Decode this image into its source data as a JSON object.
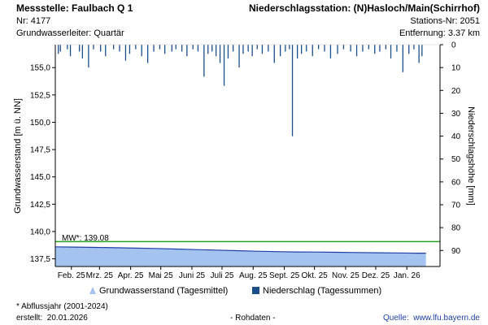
{
  "header": {
    "station_title": "Messstelle: Faulbach Q 1",
    "station_nr": "Nr: 4177",
    "aquifer": "Grundwasserleiter: Quartär",
    "rain_station_title": "Niederschlagsstation: (N)Hasloch/Main(Schirrhof)",
    "rain_station_nr": "Stations-Nr: 2051",
    "distance": "Entfernung: 3.37 km"
  },
  "footer": {
    "note": "* Abflussjahr (2001-2024)",
    "created_label": "erstellt:",
    "created_date": "20.01.2026",
    "raw_note": "- Rohdaten -",
    "source_label": "Quelle:",
    "source_link": "www.lfu.bayern.de"
  },
  "colors": {
    "groundwater_fill": "#a4c3ef",
    "groundwater_line": "#1f3fa8",
    "precip_bar": "#1a4f8a",
    "mean_line": "#22a022",
    "axis": "#000000"
  },
  "chart_data": {
    "type": "area",
    "ylabel_left": "Grundwasserstand [m ü. NN]",
    "ylabel_right": "Niederschlagshöhe [mm]",
    "y_left_ticks": [
      "155,0",
      "152,5",
      "150,0",
      "147,5",
      "145,0",
      "142,5",
      "140,0",
      "137,5"
    ],
    "y_left_values": [
      155.0,
      152.5,
      150.0,
      147.5,
      145.0,
      142.5,
      140.0,
      137.5
    ],
    "y_left_range": [
      136.8,
      157.1
    ],
    "y_right_ticks": [
      "0",
      "10",
      "20",
      "30",
      "40",
      "50",
      "60",
      "70",
      "80",
      "90"
    ],
    "y_right_values": [
      0,
      10,
      20,
      30,
      40,
      50,
      60,
      70,
      80,
      90
    ],
    "y_right_range": [
      0,
      97
    ],
    "x_ticks": [
      "Feb. 25",
      "Mrz. 25",
      "Apr. 25",
      "Mai 25",
      "Juni 25",
      "Juli 25",
      "Aug. 25",
      "Sept. 25",
      "Okt. 25",
      "Nov. 25",
      "Dez. 25",
      "Jan. 26"
    ],
    "x_tick_days": [
      16,
      44,
      75,
      105,
      136,
      166,
      197,
      228,
      258,
      289,
      319,
      350
    ],
    "x_range_days": [
      0,
      383
    ],
    "mean_label": "MW*: 139.08",
    "mean_value": 139.08,
    "legend": [
      {
        "name": "Grundwasserstand (Tagesmittel)",
        "kind": "area"
      },
      {
        "name": "Niederschlag (Tagessummen)",
        "kind": "bar"
      }
    ],
    "groundwater": {
      "days": [
        0,
        20,
        40,
        60,
        80,
        100,
        120,
        140,
        160,
        180,
        200,
        220,
        240,
        260,
        280,
        300,
        320,
        340,
        360,
        369
      ],
      "values": [
        138.6,
        138.58,
        138.55,
        138.52,
        138.48,
        138.45,
        138.4,
        138.35,
        138.3,
        138.25,
        138.2,
        138.16,
        138.13,
        138.12,
        138.1,
        138.08,
        138.06,
        138.04,
        138.02,
        138.02
      ]
    },
    "precipitation": {
      "days": [
        3,
        5,
        12,
        15,
        24,
        27,
        33,
        38,
        45,
        50,
        58,
        64,
        70,
        74,
        80,
        86,
        92,
        98,
        104,
        109,
        116,
        120,
        126,
        131,
        137,
        142,
        148,
        152,
        156,
        160,
        164,
        168,
        172,
        177,
        183,
        187,
        192,
        196,
        201,
        206,
        212,
        218,
        224,
        229,
        233,
        236,
        241,
        245,
        250,
        256,
        262,
        268,
        274,
        281,
        287,
        294,
        300,
        306,
        312,
        318,
        323,
        329,
        334,
        340,
        346,
        352,
        357,
        362,
        365
      ],
      "values": [
        4,
        3,
        2,
        5,
        3,
        6,
        10,
        2,
        3,
        5,
        2,
        3,
        7,
        4,
        2,
        5,
        8,
        3,
        2,
        4,
        3,
        2,
        3,
        5,
        2,
        3,
        14,
        4,
        3,
        5,
        8,
        18,
        6,
        3,
        10,
        4,
        3,
        5,
        2,
        4,
        3,
        8,
        5,
        3,
        2,
        40,
        6,
        4,
        3,
        5,
        2,
        3,
        6,
        4,
        2,
        3,
        5,
        3,
        2,
        4,
        3,
        2,
        6,
        3,
        12,
        4,
        2,
        8,
        5
      ]
    }
  }
}
